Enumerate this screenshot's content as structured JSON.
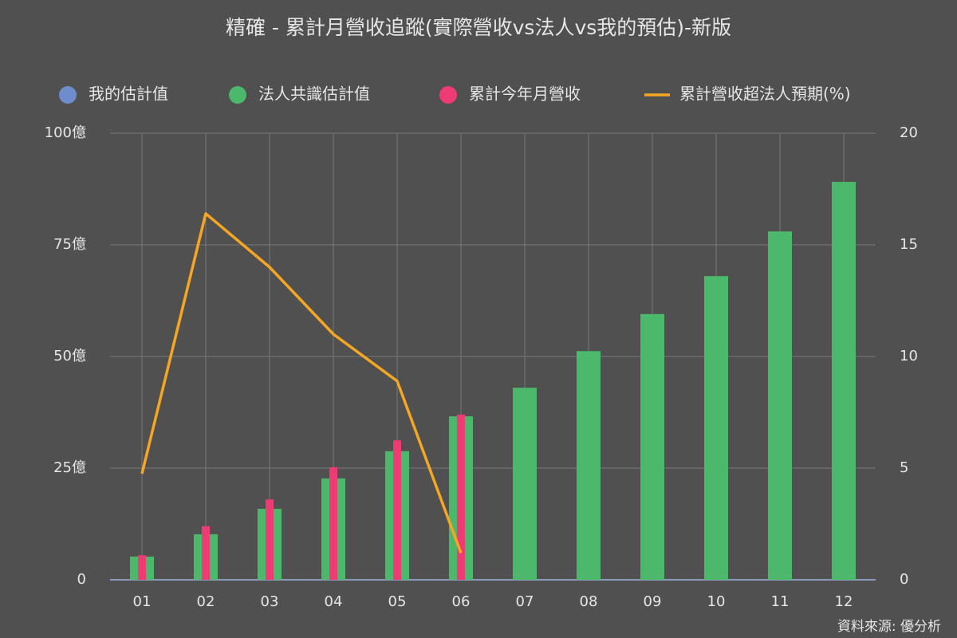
{
  "chart_data": {
    "type": "bar",
    "title": "精確 - 累計月營收追蹤(實際營收vs法人vs我的預估)-新版",
    "source": "資料來源: 優分析",
    "categories": [
      "01",
      "02",
      "03",
      "04",
      "05",
      "06",
      "07",
      "08",
      "09",
      "10",
      "11",
      "12"
    ],
    "series": [
      {
        "name": "我的估計值",
        "type": "bar",
        "color": "#6f8ccd",
        "values": [
          null,
          null,
          null,
          null,
          null,
          null,
          null,
          null,
          null,
          null,
          null,
          null
        ]
      },
      {
        "name": "法人共識估計值",
        "type": "bar",
        "color": "#4cb86c",
        "values": [
          5.2,
          10.2,
          15.9,
          22.7,
          28.8,
          36.6,
          43.0,
          51.2,
          59.5,
          68.0,
          78.0,
          89.1
        ]
      },
      {
        "name": "累計今年月營收",
        "type": "bar",
        "color": "#ef3b73",
        "values": [
          5.5,
          12.0,
          18.0,
          25.2,
          31.2,
          37.0,
          null,
          null,
          null,
          null,
          null,
          null
        ]
      },
      {
        "name": "累計營收超法人預期(%)",
        "type": "line",
        "axis": "y2",
        "color": "#f5a623",
        "values": [
          4.75,
          16.4,
          14.0,
          11.0,
          8.9,
          1.2,
          null,
          null,
          null,
          null,
          null,
          null
        ]
      }
    ],
    "ylim": [
      0,
      100
    ],
    "yticks": [
      0,
      {
        "value": 25,
        "label": "25億"
      },
      {
        "value": 50,
        "label": "50億"
      },
      {
        "value": 75,
        "label": "75億"
      },
      {
        "value": 100,
        "label": "100億"
      }
    ],
    "y2lim": [
      0,
      20
    ],
    "y2ticks": [
      0,
      5,
      10,
      15,
      20
    ],
    "grid": true
  }
}
